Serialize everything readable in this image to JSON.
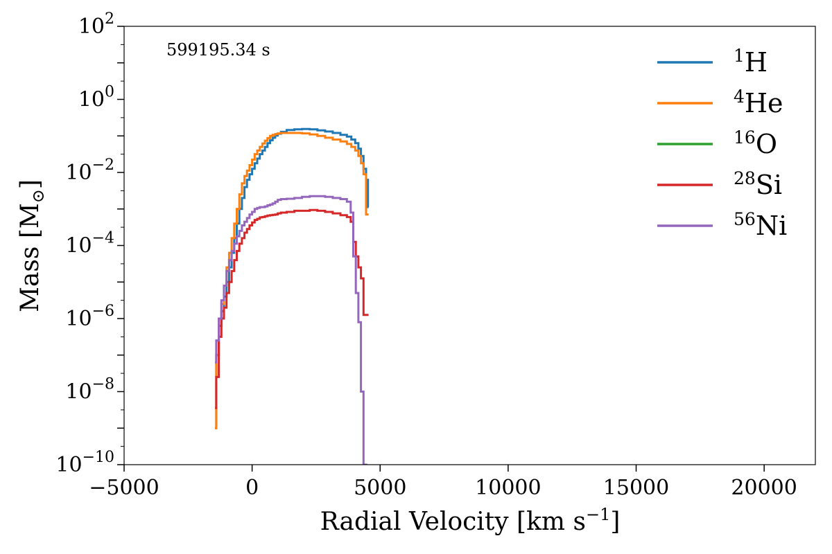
{
  "chart_data": {
    "type": "line",
    "step": true,
    "annotation": "599195.34 s",
    "xlabel_main": "Radial Velocity [km s",
    "xlabel_sup": "−1",
    "xlabel_end": "]",
    "ylabel_main": "Mass [M",
    "ylabel_sub": "⊙",
    "ylabel_end": "]",
    "xlim": [
      -5000,
      22000
    ],
    "ylim_log10": [
      -10,
      2
    ],
    "x_ticks": [
      -5000,
      0,
      5000,
      10000,
      15000,
      20000
    ],
    "x_tick_labels": [
      "−5000",
      "0",
      "5000",
      "10000",
      "15000",
      "20000"
    ],
    "y_ticks_log10": [
      2,
      0,
      -2,
      -4,
      -6,
      -8,
      -10
    ],
    "y_tick_labels": [
      {
        "base": "10",
        "exp": "2"
      },
      {
        "base": "10",
        "exp": "0"
      },
      {
        "base": "10",
        "exp": "−2"
      },
      {
        "base": "10",
        "exp": "−4"
      },
      {
        "base": "10",
        "exp": "−6"
      },
      {
        "base": "10",
        "exp": "−8"
      },
      {
        "base": "10",
        "exp": "−10"
      }
    ],
    "legend_position": "top-right",
    "series": [
      {
        "name": "1H",
        "sup": "1",
        "sym": "H",
        "color": "#1f77b4",
        "x": [
          -1450,
          -1350,
          -1250,
          -1150,
          -1050,
          -950,
          -850,
          -750,
          -650,
          -550,
          -450,
          -350,
          -250,
          -150,
          -50,
          50,
          150,
          250,
          350,
          450,
          550,
          650,
          750,
          850,
          950,
          1050,
          1200,
          1500,
          1800,
          2100,
          2400,
          2700,
          3000,
          3300,
          3600,
          3800,
          3950,
          4100,
          4200,
          4300,
          4400,
          4500,
          4550
        ],
        "log10y": [
          -9.0,
          -7.0,
          -6.2,
          -5.8,
          -5.4,
          -5.0,
          -4.6,
          -4.2,
          -3.8,
          -3.4,
          -3.0,
          -2.7,
          -2.4,
          -2.2,
          -2.05,
          -1.9,
          -1.75,
          -1.62,
          -1.5,
          -1.4,
          -1.3,
          -1.2,
          -1.12,
          -1.05,
          -0.99,
          -0.94,
          -0.89,
          -0.84,
          -0.82,
          -0.81,
          -0.82,
          -0.85,
          -0.88,
          -0.92,
          -0.97,
          -1.02,
          -1.1,
          -1.2,
          -1.35,
          -1.55,
          -1.9,
          -2.2,
          -2.95
        ]
      },
      {
        "name": "4He",
        "sup": "4",
        "sym": "He",
        "color": "#ff7f0e",
        "x": [
          -1450,
          -1350,
          -1250,
          -1150,
          -1050,
          -950,
          -850,
          -750,
          -650,
          -550,
          -450,
          -350,
          -250,
          -150,
          -50,
          50,
          150,
          250,
          350,
          450,
          550,
          650,
          750,
          850,
          950,
          1050,
          1200,
          1500,
          1800,
          2100,
          2400,
          2700,
          3000,
          3300,
          3600,
          3800,
          3950,
          4100,
          4200,
          4300,
          4400,
          4500,
          4550
        ],
        "log10y": [
          -9.0,
          -7.0,
          -6.0,
          -5.6,
          -5.1,
          -4.6,
          -4.2,
          -3.8,
          -3.4,
          -3.0,
          -2.6,
          -2.3,
          -2.1,
          -1.95,
          -1.8,
          -1.65,
          -1.5,
          -1.4,
          -1.3,
          -1.21,
          -1.13,
          -1.06,
          -1.0,
          -0.97,
          -0.95,
          -0.93,
          -0.92,
          -0.92,
          -0.92,
          -0.93,
          -0.96,
          -1.0,
          -1.05,
          -1.1,
          -1.15,
          -1.22,
          -1.3,
          -1.4,
          -1.55,
          -1.75,
          -2.05,
          -3.15,
          -3.15
        ]
      },
      {
        "name": "16O",
        "sup": "16",
        "sym": "O",
        "color": "#2ca02c",
        "x": [],
        "log10y": []
      },
      {
        "name": "28Si",
        "sup": "28",
        "sym": "Si",
        "color": "#d62728",
        "x": [
          -1450,
          -1350,
          -1250,
          -1150,
          -1050,
          -950,
          -850,
          -750,
          -650,
          -550,
          -450,
          -350,
          -250,
          -150,
          -50,
          50,
          150,
          250,
          350,
          450,
          550,
          650,
          750,
          850,
          950,
          1050,
          1200,
          1500,
          1800,
          2100,
          2400,
          2700,
          3000,
          3300,
          3600,
          3800,
          3900,
          4000,
          4100,
          4200,
          4300,
          4400,
          4500,
          4550
        ],
        "log10y": [
          -8.45,
          -7.6,
          -6.5,
          -6.0,
          -5.7,
          -5.3,
          -5.0,
          -4.7,
          -4.4,
          -4.15,
          -3.95,
          -3.8,
          -3.65,
          -3.55,
          -3.45,
          -3.37,
          -3.3,
          -3.27,
          -3.23,
          -3.22,
          -3.2,
          -3.18,
          -3.17,
          -3.16,
          -3.15,
          -3.12,
          -3.1,
          -3.08,
          -3.05,
          -3.05,
          -3.03,
          -3.05,
          -3.08,
          -3.12,
          -3.17,
          -3.22,
          -3.35,
          -3.9,
          -4.3,
          -4.6,
          -4.9,
          -5.9,
          -5.9,
          -5.9
        ]
      },
      {
        "name": "56Ni",
        "sup": "56",
        "sym": "Ni",
        "color": "#9467bd",
        "x": [
          -1450,
          -1350,
          -1250,
          -1150,
          -1050,
          -950,
          -850,
          -750,
          -650,
          -550,
          -450,
          -350,
          -250,
          -150,
          -50,
          50,
          150,
          250,
          350,
          450,
          550,
          650,
          750,
          850,
          950,
          1050,
          1200,
          1500,
          1800,
          2100,
          2400,
          2700,
          3000,
          3300,
          3600,
          3800,
          3900,
          4000,
          4100,
          4200,
          4300,
          4400,
          4500
        ],
        "log10y": [
          -7.2,
          -6.6,
          -6.0,
          -5.5,
          -5.1,
          -4.7,
          -4.4,
          -4.15,
          -3.95,
          -3.75,
          -3.6,
          -3.45,
          -3.35,
          -3.25,
          -3.15,
          -3.08,
          -3.0,
          -2.97,
          -2.95,
          -2.95,
          -2.93,
          -2.9,
          -2.88,
          -2.85,
          -2.8,
          -2.75,
          -2.73,
          -2.72,
          -2.7,
          -2.67,
          -2.65,
          -2.65,
          -2.67,
          -2.7,
          -2.73,
          -2.8,
          -3.1,
          -4.3,
          -5.3,
          -6.1,
          -8.0,
          -10.0,
          -10.0
        ]
      }
    ]
  }
}
